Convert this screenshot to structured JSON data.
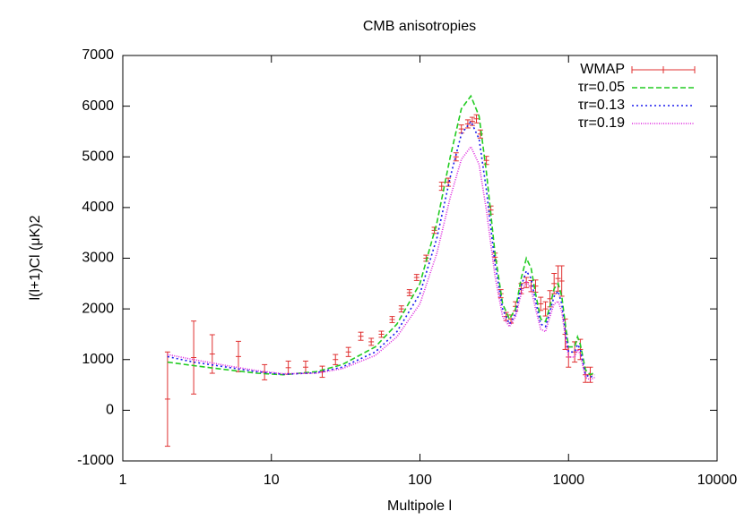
{
  "chart_data": {
    "type": "line",
    "title": "CMB anisotropies",
    "x_label": "Multipole l",
    "y_label": "l(l+1)Cl (μK)2",
    "xscale": "log",
    "xlim": [
      1,
      10000
    ],
    "xticks": [
      1,
      10,
      100,
      1000,
      10000
    ],
    "ylim": [
      -1000,
      7000
    ],
    "yticks": [
      -1000,
      0,
      1000,
      2000,
      3000,
      4000,
      5000,
      6000,
      7000
    ],
    "legend": "top right",
    "series": [
      {
        "name": "WMAP",
        "color": "#e03030",
        "style": "errorbars",
        "x": [
          2,
          3,
          4,
          6,
          9,
          13,
          17,
          22,
          27,
          33,
          40,
          47,
          55,
          65,
          75,
          85,
          95,
          110,
          125,
          140,
          155,
          175,
          190,
          210,
          225,
          240,
          255,
          280,
          300,
          320,
          350,
          380,
          410,
          440,
          480,
          520,
          560,
          600,
          650,
          700,
          750,
          800,
          850,
          900,
          950,
          1000,
          1100,
          1200,
          1300,
          1400
        ],
        "values": [
          220,
          1040,
          1110,
          1060,
          750,
          840,
          850,
          760,
          1000,
          1150,
          1460,
          1350,
          1500,
          1790,
          2000,
          2320,
          2620,
          3000,
          3550,
          4420,
          4500,
          5000,
          5550,
          5650,
          5700,
          5750,
          5450,
          4930,
          3950,
          3020,
          2300,
          1850,
          1800,
          2050,
          2400,
          2520,
          2450,
          2450,
          2100,
          2000,
          2200,
          2500,
          2600,
          2550,
          1500,
          1050,
          1150,
          1200,
          700,
          700
        ],
        "errors": [
          930,
          720,
          380,
          300,
          150,
          130,
          120,
          110,
          100,
          90,
          80,
          70,
          60,
          60,
          60,
          60,
          60,
          60,
          60,
          80,
          80,
          80,
          80,
          80,
          80,
          80,
          80,
          80,
          80,
          80,
          80,
          80,
          80,
          90,
          100,
          100,
          110,
          120,
          130,
          140,
          160,
          200,
          250,
          300,
          300,
          200,
          200,
          200,
          150,
          150
        ]
      },
      {
        "name": "τr=0.05",
        "color": "#22cc22",
        "style": "dashed",
        "x": [
          2,
          3,
          5,
          8,
          12,
          20,
          30,
          50,
          70,
          100,
          130,
          160,
          190,
          220,
          250,
          280,
          320,
          360,
          400,
          440,
          480,
          520,
          560,
          600,
          650,
          700,
          750,
          800,
          850,
          900,
          950,
          1000,
          1100,
          1150,
          1200,
          1300,
          1400,
          1500
        ],
        "values": [
          950,
          880,
          800,
          730,
          700,
          760,
          900,
          1250,
          1700,
          2500,
          3700,
          5000,
          5950,
          6200,
          5800,
          4700,
          3100,
          2100,
          1800,
          2000,
          2600,
          3000,
          2800,
          2300,
          1800,
          1750,
          2050,
          2400,
          2500,
          2250,
          1700,
          1250,
          1250,
          1450,
          1300,
          800,
          700,
          750
        ]
      },
      {
        "name": "τr=0.13",
        "color": "#1a1aee",
        "style": "dotted",
        "x": [
          2,
          3,
          5,
          8,
          12,
          20,
          30,
          50,
          70,
          100,
          130,
          160,
          190,
          220,
          250,
          280,
          320,
          360,
          400,
          440,
          480,
          520,
          560,
          600,
          650,
          700,
          750,
          800,
          850,
          900,
          950,
          1000,
          1100,
          1150,
          1200,
          1300,
          1400,
          1500
        ],
        "values": [
          1060,
          950,
          850,
          760,
          710,
          740,
          850,
          1150,
          1550,
          2300,
          3400,
          4600,
          5450,
          5700,
          5350,
          4350,
          2900,
          2000,
          1700,
          1900,
          2450,
          2750,
          2600,
          2150,
          1700,
          1650,
          1950,
          2250,
          2350,
          2100,
          1550,
          1150,
          1150,
          1300,
          1200,
          700,
          650,
          700
        ]
      },
      {
        "name": "τr=0.19",
        "color": "#dd22dd",
        "style": "fine-dotted",
        "x": [
          2,
          3,
          5,
          8,
          12,
          20,
          30,
          50,
          70,
          100,
          130,
          160,
          190,
          220,
          250,
          280,
          320,
          360,
          400,
          440,
          480,
          520,
          560,
          600,
          650,
          700,
          750,
          800,
          850,
          900,
          950,
          1000,
          1100,
          1150,
          1200,
          1300,
          1400,
          1500
        ],
        "values": [
          1100,
          1000,
          880,
          780,
          720,
          730,
          820,
          1080,
          1450,
          2100,
          3100,
          4200,
          4950,
          5200,
          4850,
          3950,
          2650,
          1850,
          1650,
          1850,
          2300,
          2550,
          2400,
          2000,
          1600,
          1550,
          1850,
          2100,
          2150,
          1950,
          1450,
          1050,
          1050,
          1200,
          1100,
          650,
          600,
          650
        ]
      }
    ]
  }
}
